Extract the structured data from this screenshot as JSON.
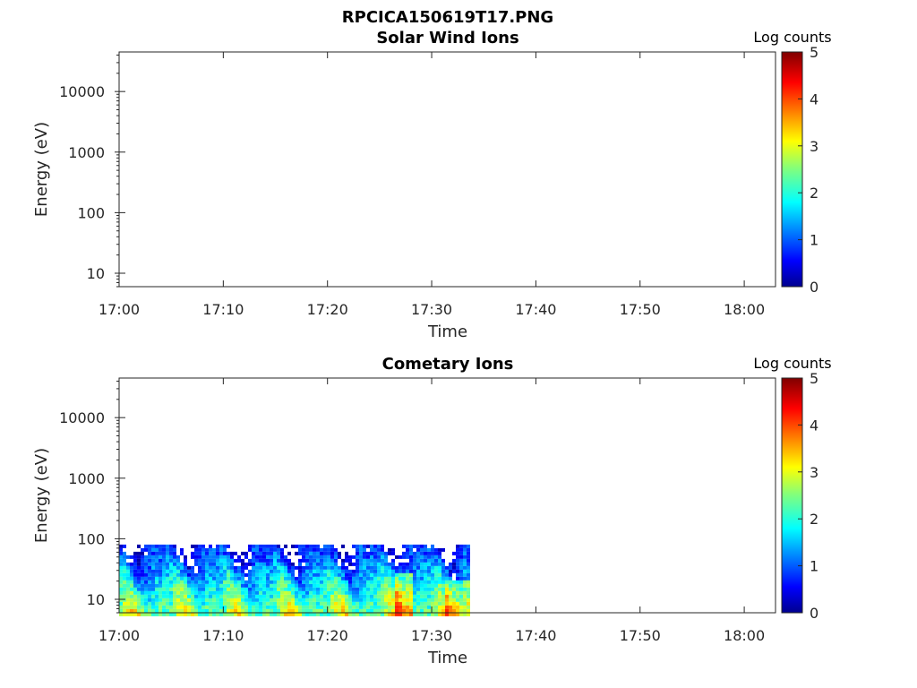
{
  "figure": {
    "title": "RPCICA150619T17.PNG",
    "colors": {
      "background": "#ffffff",
      "axis": "#262626"
    }
  },
  "chart_data": [
    {
      "type": "heatmap",
      "title": "Solar Wind Ions",
      "xlabel": "Time",
      "ylabel": "Energy (eV)",
      "x_ticks": [
        "17:00",
        "17:10",
        "17:20",
        "17:30",
        "17:40",
        "17:50",
        "18:00"
      ],
      "x_range": [
        "17:00",
        "18:03"
      ],
      "y_ticks": [
        "10",
        "100",
        "1000",
        "10000"
      ],
      "y_scale": "log",
      "y_range": [
        6,
        45000
      ],
      "colorbar": {
        "label": "Log counts",
        "ticks": [
          "0",
          "1",
          "2",
          "3",
          "4",
          "5"
        ],
        "range": [
          0,
          5
        ],
        "colormap": "jet"
      },
      "data_present": false
    },
    {
      "type": "heatmap",
      "title": "Cometary Ions",
      "xlabel": "Time",
      "ylabel": "Energy (eV)",
      "x_ticks": [
        "17:00",
        "17:10",
        "17:20",
        "17:30",
        "17:40",
        "17:50",
        "18:00"
      ],
      "x_range": [
        "17:00",
        "18:03"
      ],
      "y_ticks": [
        "10",
        "100",
        "1000",
        "10000"
      ],
      "y_scale": "log",
      "y_range": [
        6,
        45000
      ],
      "colorbar": {
        "label": "Log counts",
        "ticks": [
          "0",
          "1",
          "2",
          "3",
          "4",
          "5"
        ],
        "range": [
          0,
          5
        ],
        "colormap": "jet"
      },
      "data_present": true,
      "data_time_range": [
        "17:00",
        "17:33.5"
      ],
      "data_energy_range_eV": [
        6,
        80
      ],
      "note_shape": "intermittent energy-time dispersion stripes, counts mostly 1-3 log, peaks near 3.5-4 around 17:27 and 17:33"
    }
  ]
}
